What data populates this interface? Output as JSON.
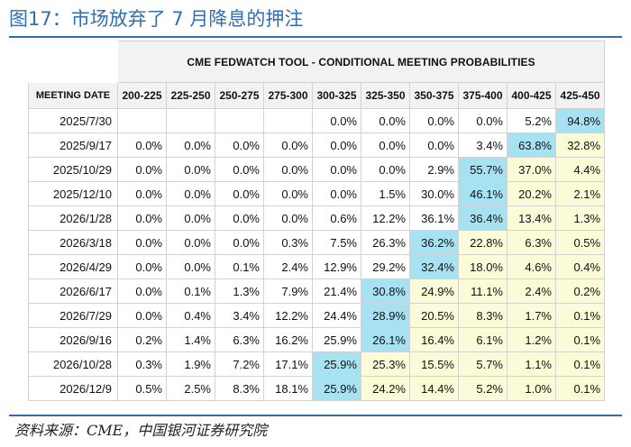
{
  "figure": {
    "title": "图17：市场放弃了 7 月降息的押注",
    "source": "资料来源：CME，中国银河证券研究院"
  },
  "table": {
    "super_header": "CME FEDWATCH TOOL - CONDITIONAL MEETING PROBABILITIES",
    "date_header": "MEETING DATE",
    "columns": [
      "200-225",
      "225-250",
      "250-275",
      "275-300",
      "300-325",
      "325-350",
      "350-375",
      "375-400",
      "400-425",
      "425-450"
    ],
    "rows": [
      {
        "date": "2025/7/30",
        "values": [
          "",
          "",
          "",
          "",
          "0.0%",
          "0.0%",
          "0.0%",
          "0.0%",
          "5.2%",
          "94.8%"
        ]
      },
      {
        "date": "2025/9/17",
        "values": [
          "0.0%",
          "0.0%",
          "0.0%",
          "0.0%",
          "0.0%",
          "0.0%",
          "0.0%",
          "3.4%",
          "63.8%",
          "32.8%"
        ]
      },
      {
        "date": "2025/10/29",
        "values": [
          "0.0%",
          "0.0%",
          "0.0%",
          "0.0%",
          "0.0%",
          "0.0%",
          "2.9%",
          "55.7%",
          "37.0%",
          "4.4%"
        ]
      },
      {
        "date": "2025/12/10",
        "values": [
          "0.0%",
          "0.0%",
          "0.0%",
          "0.0%",
          "0.0%",
          "1.5%",
          "30.0%",
          "46.1%",
          "20.2%",
          "2.1%"
        ]
      },
      {
        "date": "2026/1/28",
        "values": [
          "0.0%",
          "0.0%",
          "0.0%",
          "0.0%",
          "0.6%",
          "12.2%",
          "36.1%",
          "36.4%",
          "13.4%",
          "1.3%"
        ]
      },
      {
        "date": "2026/3/18",
        "values": [
          "0.0%",
          "0.0%",
          "0.0%",
          "0.3%",
          "7.5%",
          "26.3%",
          "36.2%",
          "22.8%",
          "6.3%",
          "0.5%"
        ]
      },
      {
        "date": "2026/4/29",
        "values": [
          "0.0%",
          "0.0%",
          "0.1%",
          "2.4%",
          "12.9%",
          "29.2%",
          "32.4%",
          "18.0%",
          "4.6%",
          "0.4%"
        ]
      },
      {
        "date": "2026/6/17",
        "values": [
          "0.0%",
          "0.1%",
          "1.3%",
          "7.9%",
          "21.4%",
          "30.8%",
          "24.9%",
          "11.1%",
          "2.4%",
          "0.2%"
        ]
      },
      {
        "date": "2026/7/29",
        "values": [
          "0.0%",
          "0.4%",
          "3.4%",
          "12.2%",
          "24.4%",
          "28.9%",
          "20.5%",
          "8.3%",
          "1.7%",
          "0.1%"
        ]
      },
      {
        "date": "2026/9/16",
        "values": [
          "0.2%",
          "1.4%",
          "6.3%",
          "16.2%",
          "25.9%",
          "26.1%",
          "16.4%",
          "6.1%",
          "1.2%",
          "0.1%"
        ]
      },
      {
        "date": "2026/10/28",
        "values": [
          "0.3%",
          "1.9%",
          "7.2%",
          "17.1%",
          "25.9%",
          "25.3%",
          "15.5%",
          "5.7%",
          "1.1%",
          "0.1%"
        ]
      },
      {
        "date": "2026/12/9",
        "values": [
          "0.5%",
          "2.5%",
          "8.3%",
          "18.1%",
          "25.9%",
          "24.2%",
          "14.4%",
          "5.2%",
          "1.0%",
          "0.1%"
        ]
      }
    ],
    "highlight_colors": {
      "max": "#a7e2f2",
      "mid": "#fbfcd7"
    },
    "highlights": {
      "max": [
        [
          0,
          9
        ],
        [
          1,
          8
        ],
        [
          2,
          7
        ],
        [
          3,
          7
        ],
        [
          4,
          7
        ],
        [
          5,
          6
        ],
        [
          6,
          6
        ],
        [
          7,
          5
        ],
        [
          8,
          5
        ],
        [
          9,
          5
        ],
        [
          10,
          4
        ],
        [
          11,
          4
        ]
      ],
      "mid": [
        [
          1,
          9
        ],
        [
          2,
          8
        ],
        [
          2,
          9
        ],
        [
          3,
          8
        ],
        [
          3,
          9
        ],
        [
          4,
          8
        ],
        [
          4,
          9
        ],
        [
          5,
          7
        ],
        [
          5,
          8
        ],
        [
          5,
          9
        ],
        [
          6,
          7
        ],
        [
          6,
          8
        ],
        [
          6,
          9
        ],
        [
          7,
          6
        ],
        [
          7,
          7
        ],
        [
          7,
          8
        ],
        [
          7,
          9
        ],
        [
          8,
          6
        ],
        [
          8,
          7
        ],
        [
          8,
          8
        ],
        [
          8,
          9
        ],
        [
          9,
          6
        ],
        [
          9,
          7
        ],
        [
          9,
          8
        ],
        [
          9,
          9
        ],
        [
          10,
          5
        ],
        [
          10,
          6
        ],
        [
          10,
          7
        ],
        [
          10,
          8
        ],
        [
          10,
          9
        ],
        [
          11,
          5
        ],
        [
          11,
          6
        ],
        [
          11,
          7
        ],
        [
          11,
          8
        ],
        [
          11,
          9
        ]
      ]
    }
  }
}
